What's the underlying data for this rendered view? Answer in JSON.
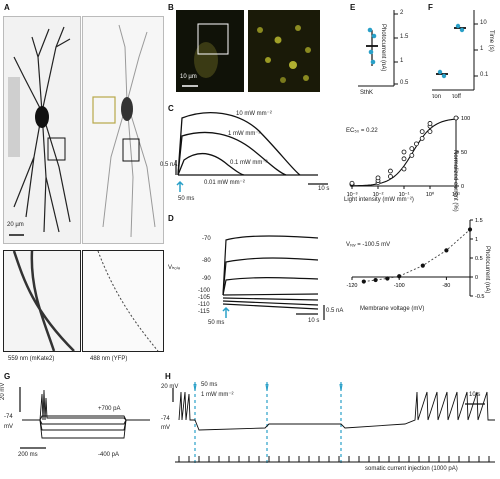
{
  "panel_labels": {
    "A": "A",
    "B": "B",
    "C": "C",
    "D": "D",
    "E": "E",
    "F": "F",
    "G": "G",
    "H": "H"
  },
  "panel_a": {
    "scalebar": "20 µm",
    "caption_left": "559 nm (mKate2)",
    "caption_right": "488 nm (YFP)"
  },
  "panel_b": {
    "scalebar": "10 µm"
  },
  "panel_c": {
    "trace_labels": [
      "10 mW mm⁻²",
      "1 mW mm⁻²",
      "0.1 mW mm⁻²",
      "0.01 mW mm⁻²"
    ],
    "vscale": "0.5 nA",
    "hscale": "10 s",
    "pulse": "50 ms"
  },
  "panel_c_right": {
    "ec50": "EC₅₀ = 0.22",
    "xlabel": "Light intensity (mW mm⁻²)",
    "ylabel": "Normalized current (%)",
    "xticks": [
      "10⁻³",
      "10⁻²",
      "10⁻¹",
      "10⁰",
      "10¹"
    ],
    "yticks": [
      "0",
      "50",
      "100"
    ]
  },
  "panel_d": {
    "vhold": "Vₕₒₗₔ",
    "levels": [
      "-70",
      "-80",
      "-90",
      "-100",
      "-105",
      "-110",
      "-115"
    ],
    "vscale": "0.5 nA",
    "hscale": "10 s",
    "pulse": "50 ms"
  },
  "panel_d_right": {
    "vrev": "Vᵣₑᵥ = -100.5 mV",
    "xlabel": "Membrane voltage (mV)",
    "ylabel": "Photocurrent (nA)",
    "xticks": [
      "-120",
      "-100",
      "-80"
    ],
    "yticks": [
      "-0.5",
      "0",
      "0.5",
      "1",
      "1.5"
    ]
  },
  "panel_e": {
    "ylabel": "Photocurrent (nA)",
    "xlabel": "SthK",
    "yticks": [
      "0.5",
      "1",
      "1.5",
      "2"
    ]
  },
  "panel_f": {
    "ylabel": "Time (s)",
    "xticks": [
      "τon",
      "τoff"
    ],
    "yticks": [
      "0.1",
      "1",
      "10"
    ]
  },
  "panel_g": {
    "vscale": "20 mV",
    "v0": "-74",
    "unit": "mV",
    "hscale": "200 ms",
    "top_current": "+700 pA",
    "bottom_current": "-400 pA"
  },
  "panel_h": {
    "vscale": "20 mV",
    "v0": "-74",
    "unit": "mV",
    "pulse": "50 ms",
    "intensity": "1 mW mm⁻²",
    "hscale": "10 s",
    "injection": "somatic current injection (1000 pA)"
  },
  "chart_data": [
    {
      "type": "scatter",
      "title": "",
      "xlabel": "Light intensity (mW mm⁻²)",
      "ylabel": "Normalized current (%)",
      "xscale": "log",
      "xlim": [
        0.001,
        10
      ],
      "ylim": [
        0,
        100
      ],
      "annotation": "EC₅₀ = 0.22",
      "x": [
        0.001,
        0.001,
        0.001,
        0.01,
        0.01,
        0.01,
        0.03,
        0.03,
        0.1,
        0.1,
        0.1,
        0.2,
        0.2,
        0.3,
        0.5,
        0.5,
        1,
        1,
        1,
        10
      ],
      "y": [
        2,
        3,
        4,
        5,
        8,
        12,
        14,
        22,
        25,
        40,
        50,
        45,
        55,
        62,
        70,
        80,
        80,
        88,
        92,
        100
      ]
    },
    {
      "type": "scatter",
      "title": "",
      "xlabel": "Membrane voltage (mV)",
      "ylabel": "Photocurrent (nA)",
      "xlim": [
        -120,
        -70
      ],
      "ylim": [
        -0.5,
        1.5
      ],
      "annotation": "Vᵣₑᵥ = -100.5 mV",
      "x": [
        -115,
        -110,
        -105,
        -100,
        -90,
        -80,
        -70
      ],
      "y": [
        -0.12,
        -0.08,
        -0.04,
        0.02,
        0.3,
        0.7,
        1.25
      ]
    }
  ]
}
